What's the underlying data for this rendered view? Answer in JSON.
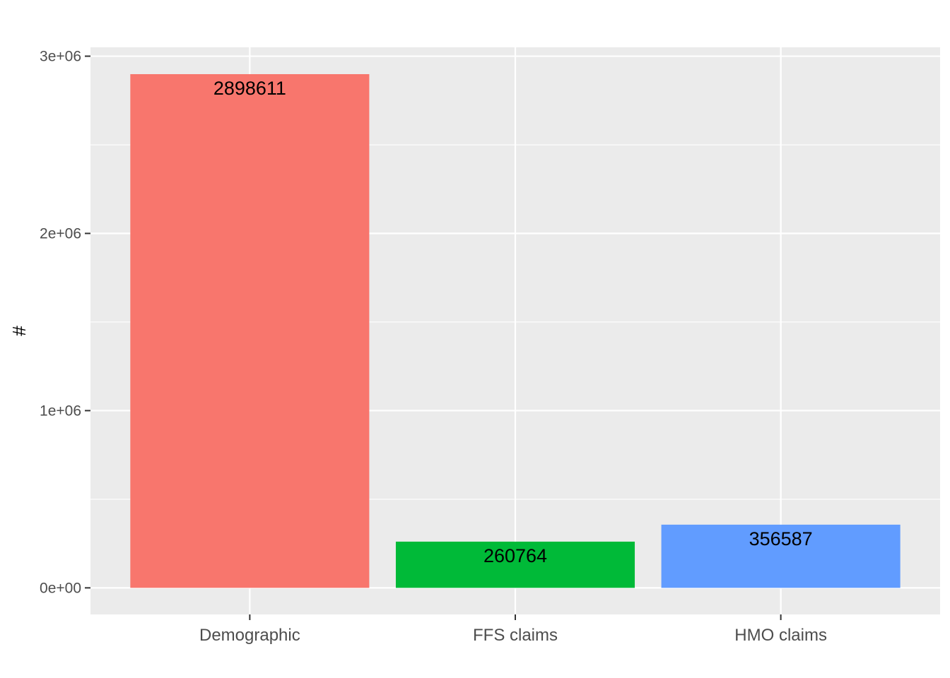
{
  "chart_data": {
    "type": "bar",
    "title": "",
    "xlabel": "",
    "ylabel": "#",
    "categories": [
      "Demographic",
      "FFS claims",
      "HMO claims"
    ],
    "values": [
      2898611,
      260764,
      356587
    ],
    "data_labels": [
      "2898611",
      "260764",
      "356587"
    ],
    "colors": [
      "#F8766D",
      "#00BA38",
      "#619CFF"
    ],
    "ylim": [
      -150000,
      3050000
    ],
    "y_ticks": [
      0,
      1000000,
      2000000,
      3000000
    ],
    "y_tick_labels": [
      "0e+00",
      "1e+06",
      "2e+06",
      "3e+06"
    ],
    "grid": true,
    "legend": "none",
    "panel_background": "#EBEBEB",
    "grid_color": "#FFFFFF"
  }
}
